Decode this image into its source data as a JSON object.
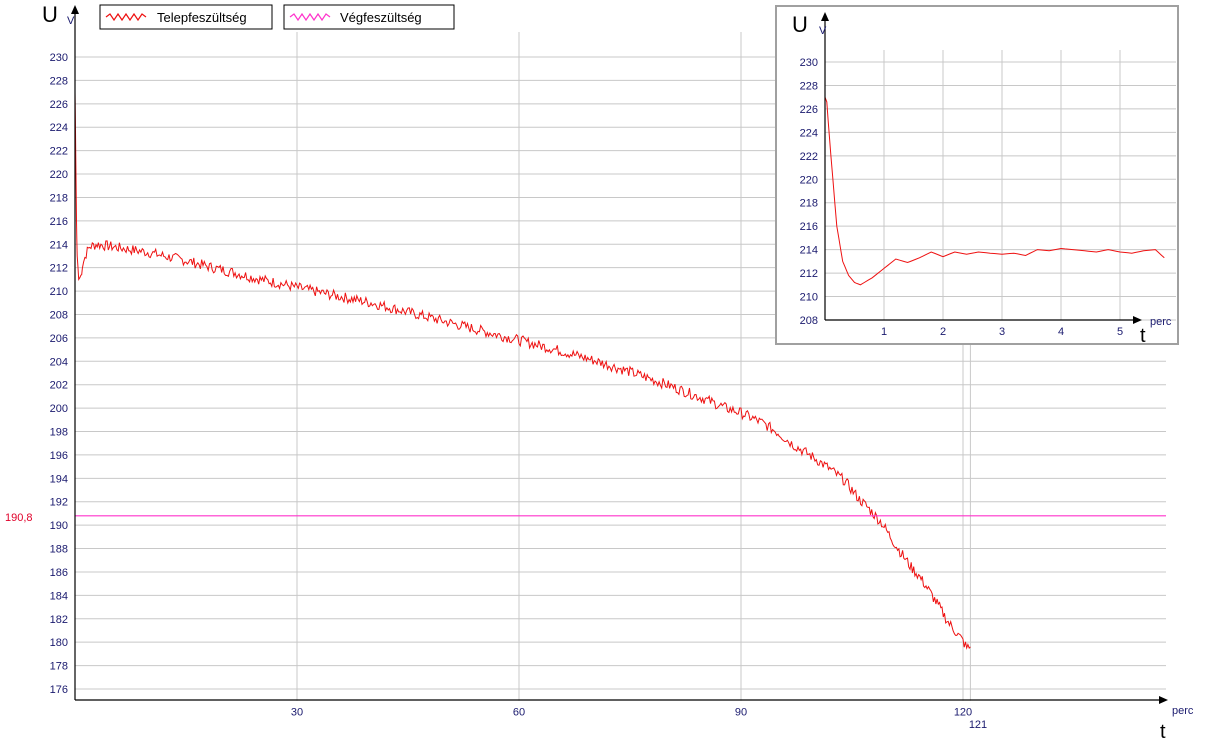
{
  "colors": {
    "primary_series": "#ee1111",
    "reference_line": "#ff33cc",
    "grid": "#c8c8c8",
    "tick_text": "#1a1a6e"
  },
  "chart_data": [
    {
      "type": "line",
      "name": "main",
      "y_axis_symbol": "U",
      "y_unit": "V",
      "x_axis_symbol": "t",
      "x_unit": "perc",
      "ylim": [
        175,
        231
      ],
      "xlim": [
        0,
        146
      ],
      "y_ticks": [
        176,
        178,
        180,
        182,
        184,
        186,
        188,
        190,
        192,
        194,
        196,
        198,
        200,
        202,
        204,
        206,
        208,
        210,
        212,
        214,
        216,
        218,
        220,
        222,
        224,
        226,
        228,
        230
      ],
      "x_ticks": [
        30,
        60,
        90,
        120
      ],
      "x_marker_label": "121",
      "grid": true,
      "legend_position": "top-left",
      "series": [
        {
          "name": "Telepfeszültség",
          "x": [
            0,
            0.1,
            0.2,
            0.3,
            0.5,
            0.8,
            1,
            1.5,
            2,
            3,
            4,
            5,
            6,
            8,
            10,
            12,
            15,
            18,
            20,
            22,
            25,
            28,
            30,
            33,
            36,
            40,
            45,
            50,
            55,
            60,
            65,
            70,
            75,
            80,
            85,
            88,
            90,
            93,
            95,
            97,
            100,
            102,
            104,
            105,
            106,
            107,
            108,
            109,
            110,
            111,
            112,
            113,
            114,
            115,
            116,
            117,
            118,
            119,
            120,
            120.5,
            121
          ],
          "y": [
            227,
            222,
            216,
            213,
            211,
            211.3,
            212.2,
            213.2,
            213.8,
            214.0,
            213.9,
            213.8,
            213.7,
            213.5,
            213.3,
            213.0,
            212.6,
            212.1,
            211.8,
            211.5,
            211.0,
            210.6,
            210.3,
            209.9,
            209.5,
            209.0,
            208.2,
            207.4,
            206.6,
            205.8,
            205.0,
            204.1,
            203.1,
            202.0,
            200.8,
            200.0,
            199.6,
            198.7,
            197.9,
            196.9,
            195.7,
            194.8,
            193.8,
            193.0,
            192.2,
            191.6,
            190.9,
            190.2,
            189.2,
            188.2,
            187.3,
            186.4,
            185.7,
            184.8,
            183.8,
            182.8,
            181.7,
            180.9,
            180.1,
            179.5,
            179.6
          ]
        },
        {
          "name": "Végfeszültség",
          "x": [
            0,
            146
          ],
          "y": [
            190.8,
            190.8
          ]
        }
      ],
      "reference_label": "190,8"
    },
    {
      "type": "line",
      "name": "inset",
      "y_axis_symbol": "U",
      "y_unit": "V",
      "x_axis_symbol": "t",
      "x_unit": "perc",
      "ylim": [
        208,
        231
      ],
      "xlim": [
        0,
        5.85
      ],
      "y_ticks": [
        208,
        210,
        212,
        214,
        216,
        218,
        220,
        222,
        224,
        226,
        228,
        230
      ],
      "x_ticks": [
        1,
        2,
        3,
        4,
        5
      ],
      "grid": true,
      "series": [
        {
          "name": "Telepfeszültség",
          "x": [
            0,
            0.03,
            0.1,
            0.2,
            0.3,
            0.4,
            0.5,
            0.6,
            0.8,
            1.0,
            1.2,
            1.4,
            1.6,
            1.8,
            2.0,
            2.2,
            2.4,
            2.6,
            2.8,
            3.0,
            3.2,
            3.4,
            3.6,
            3.8,
            4.0,
            4.2,
            4.4,
            4.6,
            4.8,
            5.0,
            5.2,
            5.4,
            5.6,
            5.75
          ],
          "y": [
            227,
            226.6,
            222,
            216,
            213,
            211.8,
            211.2,
            211.0,
            211.6,
            212.4,
            213.2,
            212.9,
            213.3,
            213.8,
            213.4,
            213.8,
            213.6,
            213.8,
            213.7,
            213.6,
            213.7,
            213.5,
            214.0,
            213.9,
            214.1,
            214.0,
            213.9,
            213.8,
            214.0,
            213.8,
            213.7,
            213.9,
            214.0,
            213.3
          ]
        }
      ]
    }
  ]
}
